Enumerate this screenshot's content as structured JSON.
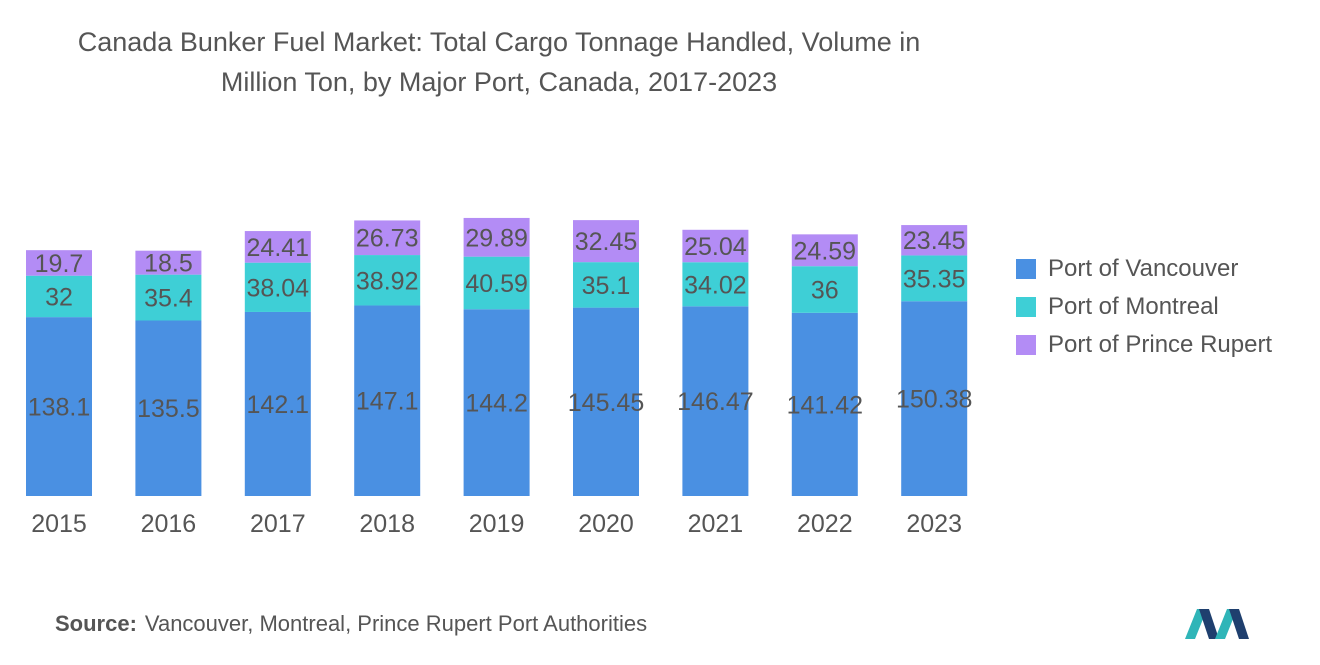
{
  "title_lines": [
    "Canada Bunker Fuel Market: Total Cargo Tonnage Handled, Volume in",
    "Million Ton, by Major Port, Canada, 2017-2023"
  ],
  "chart_data": {
    "type": "bar",
    "stacked": true,
    "title": "Canada Bunker Fuel Market: Total Cargo Tonnage Handled, Volume in Million Ton, by Major Port, Canada, 2017-2023",
    "xlabel": "",
    "ylabel": "",
    "ylim": [
      0,
      210
    ],
    "grid": false,
    "legend_position": "right",
    "categories": [
      "2015",
      "2016",
      "2017",
      "2018",
      "2019",
      "2020",
      "2021",
      "2022",
      "2023"
    ],
    "series": [
      {
        "name": "Port of Vancouver",
        "color": "#4a90e2",
        "values": [
          138.1,
          135.5,
          142.1,
          147.1,
          144.2,
          145.45,
          146.47,
          141.42,
          150.38
        ],
        "labels": [
          "138.1",
          "135.5",
          "142.1",
          "147.1",
          "144.2",
          "145.45",
          "146.47",
          "141.42",
          "150.38"
        ]
      },
      {
        "name": "Port of Montreal",
        "color": "#3ecfd6",
        "values": [
          32,
          35.4,
          38.04,
          38.92,
          40.59,
          35.1,
          34.02,
          36,
          35.35
        ],
        "labels": [
          "32",
          "35.4",
          "38.04",
          "38.92",
          "40.59",
          "35.1",
          "34.02",
          "36",
          "35.35"
        ]
      },
      {
        "name": "Port of Prince Rupert",
        "color": "#b38cf5",
        "values": [
          19.7,
          18.5,
          24.41,
          26.73,
          29.89,
          32.45,
          25.04,
          24.59,
          23.45
        ],
        "labels": [
          "19.7",
          "18.5",
          "24.41",
          "26.73",
          "29.89",
          "32.45",
          "25.04",
          "24.59",
          "23.45"
        ]
      }
    ]
  },
  "source": {
    "label": "Source:",
    "text": "Vancouver, Montreal, Prince Rupert Port Authorities"
  },
  "colors": {
    "text": "#555555",
    "logo_dark": "#1f3f6e",
    "logo_teal": "#2fb5b8"
  }
}
